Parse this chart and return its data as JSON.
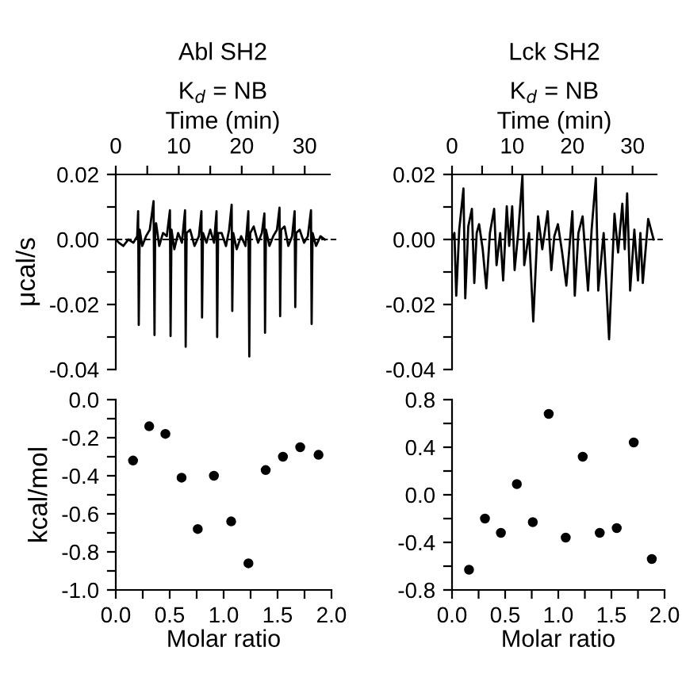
{
  "chart_data": [
    {
      "type": "line",
      "title": "Abl SH2",
      "subtitle": "K$_{d}$ = NB",
      "xlabel": "Time (min)",
      "ylabel": "μcal/s",
      "series": [
        {
          "color": "#000000",
          "x": [
            0,
            0.5,
            1.2,
            2.0,
            2.8,
            3.4,
            3.55,
            3.65,
            3.8,
            4.2,
            4.8,
            5.4,
            6.0,
            6.15,
            6.26,
            6.4,
            6.9,
            7.5,
            8.1,
            8.6,
            8.7,
            8.85,
            9.3,
            9.9,
            10.5,
            11.0,
            11.1,
            11.25,
            11.8,
            12.5,
            13.2,
            13.6,
            13.7,
            13.85,
            14.4,
            15.0,
            15.6,
            16.0,
            16.1,
            16.25,
            16.8,
            17.5,
            18.0,
            18.4,
            18.5,
            18.65,
            19.2,
            19.9,
            20.6,
            21.05,
            21.2,
            21.35,
            21.9,
            22.6,
            23.2,
            23.6,
            23.7,
            23.85,
            24.4,
            25.0,
            25.6,
            26.0,
            26.1,
            26.25,
            26.8,
            27.4,
            28.0,
            28.4,
            28.5,
            28.65,
            29.2,
            29.9,
            30.5,
            31.0,
            31.1,
            31.25,
            31.8,
            32.5,
            33.2
          ],
          "values": [
            0.0,
            -0.001,
            -0.002,
            0.0,
            -0.001,
            0.001,
            0.0087,
            -0.0263,
            0.003,
            -0.002,
            0.001,
            0.003,
            0.0118,
            -0.0294,
            0.004,
            0.005,
            -0.002,
            0.002,
            0.001,
            0.009,
            -0.0297,
            0.003,
            -0.003,
            0.002,
            -0.001,
            0.009,
            -0.033,
            0.002,
            0.003,
            -0.002,
            0.001,
            0.0087,
            -0.024,
            0.002,
            -0.001,
            0.003,
            -0.001,
            0.0087,
            -0.03,
            0.002,
            0.002,
            -0.002,
            0.003,
            0.0107,
            -0.022,
            0.002,
            -0.003,
            0.001,
            -0.002,
            0.0087,
            -0.036,
            0.002,
            0.004,
            -0.001,
            0.002,
            0.008,
            -0.0287,
            0.003,
            -0.002,
            0.001,
            0.003,
            0.0098,
            -0.0236,
            0.003,
            0.004,
            -0.002,
            0.001,
            0.0087,
            -0.0208,
            0.002,
            0.003,
            -0.001,
            0.001,
            0.009,
            -0.026,
            0.002,
            -0.002,
            0.001,
            0.0
          ]
        }
      ],
      "xlim": [
        0,
        34
      ],
      "xticks": [
        0,
        {
          "value": 5,
          "label": null
        },
        10,
        {
          "value": 15,
          "label": null
        },
        20,
        {
          "value": 25,
          "label": null
        },
        30
      ],
      "ylim": [
        -0.04,
        0.02
      ],
      "yticks": [
        {
          "value": -0.04,
          "label": "-0.04"
        },
        {
          "value": -0.03,
          "label": null
        },
        {
          "value": -0.02,
          "label": "-0.02"
        },
        {
          "value": -0.01,
          "label": null
        },
        {
          "value": 0,
          "label": "0.00"
        },
        {
          "value": 0.01,
          "label": null
        },
        {
          "value": 0.02,
          "label": "0.02"
        }
      ],
      "ref_lines": [
        {
          "axis": "y",
          "value": 0,
          "color": "#000000",
          "line_style": "dashed"
        }
      ],
      "line_style": "solid"
    },
    {
      "type": "line",
      "title": "Lck SH2",
      "subtitle": "K$_{d}$ = NB",
      "xlabel": "Time (min)",
      "series": [
        {
          "color": "#000000",
          "x": [
            0,
            0.4,
            0.7,
            1.2,
            1.9,
            2.2,
            2.7,
            3.3,
            3.7,
            4.1,
            4.5,
            5.1,
            5.7,
            6.3,
            7.0,
            7.4,
            8.0,
            8.5,
            9.1,
            9.5,
            10.0,
            10.4,
            11.0,
            11.7,
            12.0,
            12.8,
            13.5,
            14.3,
            15.0,
            15.9,
            16.5,
            17.0,
            17.6,
            18.3,
            19.0,
            20.0,
            20.4,
            21.0,
            21.7,
            22.6,
            23.2,
            23.9,
            24.3,
            25.2,
            26.1,
            27.0,
            27.6,
            28.3,
            28.7,
            29.1,
            29.6,
            30.3,
            30.9,
            31.3,
            31.7,
            32.6,
            33.5
          ],
          "values": [
            0.0,
            0.002,
            -0.0173,
            0.003,
            0.0157,
            -0.0181,
            0.004,
            0.0094,
            -0.0134,
            0.002,
            0.0047,
            -0.003,
            -0.015,
            0.002,
            0.0094,
            -0.0079,
            0.002,
            -0.0126,
            0.0102,
            -0.002,
            0.0102,
            -0.0094,
            0.002,
            0.0197,
            -0.0079,
            0.002,
            -0.0252,
            0.0071,
            -0.003,
            0.0087,
            -0.0094,
            0.001,
            0.0047,
            -0.004,
            -0.0142,
            0.0087,
            -0.0173,
            0.002,
            0.0071,
            -0.0157,
            0.003,
            0.0189,
            -0.0157,
            0.002,
            -0.0307,
            0.0079,
            -0.004,
            0.011,
            -0.003,
            0.0142,
            -0.0157,
            0.003,
            -0.0126,
            0.002,
            -0.0134,
            0.0063,
            0.0
          ]
        }
      ],
      "xlim": [
        0,
        34
      ],
      "xticks": [
        0,
        {
          "value": 5,
          "label": null
        },
        10,
        {
          "value": 15,
          "label": null
        },
        20,
        {
          "value": 25,
          "label": null
        },
        30
      ],
      "ylim": [
        -0.04,
        0.02
      ],
      "yticks": [
        {
          "value": -0.04,
          "label": "-0.04"
        },
        {
          "value": -0.03,
          "label": null
        },
        {
          "value": -0.02,
          "label": "-0.02"
        },
        {
          "value": -0.01,
          "label": null
        },
        {
          "value": 0,
          "label": "0.00"
        },
        {
          "value": 0.01,
          "label": null
        },
        {
          "value": 0.02,
          "label": "0.02"
        }
      ],
      "ref_lines": [
        {
          "axis": "y",
          "value": 0,
          "color": "#000000",
          "line_style": "dashed"
        }
      ],
      "line_style": "solid"
    },
    {
      "type": "scatter",
      "xlabel": "Molar ratio",
      "ylabel": "kcal/mol",
      "marker": "circle",
      "series": [
        {
          "color": "#000000",
          "x": [
            0.16,
            0.31,
            0.46,
            0.61,
            0.76,
            0.91,
            1.07,
            1.23,
            1.39,
            1.55,
            1.71,
            1.88
          ],
          "values": [
            -0.32,
            -0.14,
            -0.18,
            -0.41,
            -0.68,
            -0.4,
            -0.64,
            -0.86,
            -0.37,
            -0.3,
            -0.25,
            -0.29
          ]
        }
      ],
      "xlim": [
        0,
        2.0
      ],
      "xticks": [
        {
          "value": 0,
          "label": "0.0"
        },
        {
          "value": 0.25,
          "label": null
        },
        0.5,
        {
          "value": 0.75,
          "label": null
        },
        {
          "value": 1,
          "label": "1.0"
        },
        {
          "value": 1.25,
          "label": null
        },
        1.5,
        {
          "value": 1.75,
          "label": null
        },
        {
          "value": 2,
          "label": "2.0"
        }
      ],
      "ylim": [
        -1.0,
        0.0
      ],
      "yticks": [
        {
          "value": -1,
          "label": "-1.0"
        },
        {
          "value": -0.9,
          "label": null
        },
        -0.8,
        {
          "value": -0.7,
          "label": null
        },
        -0.6,
        {
          "value": -0.5,
          "label": null
        },
        -0.4,
        {
          "value": -0.3,
          "label": null
        },
        -0.2,
        {
          "value": -0.1,
          "label": null
        },
        {
          "value": 0,
          "label": "0.0"
        }
      ]
    },
    {
      "type": "scatter",
      "xlabel": "Molar ratio",
      "marker": "circle",
      "series": [
        {
          "color": "#000000",
          "x": [
            0.16,
            0.31,
            0.46,
            0.61,
            0.76,
            0.91,
            1.07,
            1.23,
            1.39,
            1.55,
            1.71,
            1.88
          ],
          "values": [
            -0.63,
            -0.2,
            -0.32,
            0.09,
            -0.23,
            0.68,
            -0.36,
            0.32,
            -0.32,
            -0.28,
            0.44,
            -0.54
          ]
        }
      ],
      "xlim": [
        0,
        2.0
      ],
      "xticks": [
        {
          "value": 0,
          "label": "0.0"
        },
        {
          "value": 0.25,
          "label": null
        },
        0.5,
        {
          "value": 0.75,
          "label": null
        },
        {
          "value": 1,
          "label": "1.0"
        },
        {
          "value": 1.25,
          "label": null
        },
        1.5,
        {
          "value": 1.75,
          "label": null
        },
        {
          "value": 2,
          "label": "2.0"
        }
      ],
      "ylim": [
        -0.8,
        0.8
      ],
      "yticks": [
        -0.8,
        {
          "value": -0.6,
          "label": null
        },
        -0.4,
        {
          "value": -0.2,
          "label": null
        },
        {
          "value": 0,
          "label": "0.0"
        },
        {
          "value": 0.2,
          "label": null
        },
        0.4,
        {
          "value": 0.6,
          "label": null
        },
        0.8
      ]
    }
  ]
}
